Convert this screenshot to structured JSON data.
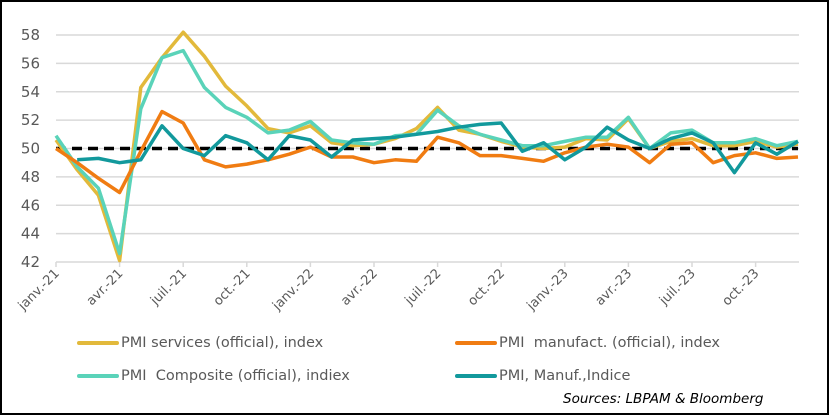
{
  "chart_data": {
    "type": "line",
    "title": "",
    "xlabel": "",
    "ylabel": "",
    "ylim": [
      42,
      58
    ],
    "yticks": [
      "42",
      "44",
      "46",
      "48",
      "50",
      "52",
      "54",
      "56",
      "58"
    ],
    "x": [
      "janv.-21",
      "févr.-21",
      "mars-21",
      "avr.-21",
      "mai-21",
      "juin-21",
      "juil.-21",
      "août-21",
      "sept.-21",
      "oct.-21",
      "nov.-21",
      "déc.-21",
      "janv.-22",
      "févr.-22",
      "mars-22",
      "avr.-22",
      "mai-22",
      "juin-22",
      "juil.-22",
      "août-22",
      "sept.-22",
      "oct.-22",
      "nov.-22",
      "déc.-22",
      "janv.-23",
      "févr.-23",
      "mars-23",
      "avr.-23",
      "mai-23",
      "juin-23",
      "juil.-23",
      "août-23",
      "sept.-23",
      "oct.-23",
      "nov.-23",
      "déc.-23"
    ],
    "xtick_labels": [
      "janv.-21",
      "avr.-21",
      "juil.-21",
      "oct.-21",
      "janv.-22",
      "avr.-22",
      "juil.-22",
      "oct.-22",
      "janv.-23",
      "avr.-23",
      "juil.-23",
      "oct.-23"
    ],
    "grid": true,
    "reference_line": 50,
    "legend_position": "bottom",
    "series": [
      {
        "name": "PMI services (official), index",
        "color": "#E2B93B",
        "values": [
          50.6,
          48.5,
          46.7,
          42.1,
          54.3,
          56.4,
          58.2,
          56.5,
          54.4,
          53.0,
          51.4,
          51.1,
          51.6,
          50.4,
          50.2,
          50.3,
          50.7,
          51.4,
          52.9,
          51.3,
          51.0,
          50.5,
          50.1,
          50.0,
          50.1,
          50.7,
          50.6,
          52.1,
          50.0,
          50.5,
          50.7,
          50.2,
          50.2,
          50.5,
          50.1,
          50.3
        ]
      },
      {
        "name": "PMI  manufact. (official), index",
        "color": "#F07C12",
        "values": [
          50.0,
          49.0,
          47.9,
          46.9,
          49.8,
          52.6,
          51.8,
          49.2,
          48.7,
          48.9,
          49.2,
          49.6,
          50.1,
          49.4,
          49.4,
          49.0,
          49.2,
          49.1,
          50.8,
          50.4,
          49.5,
          49.5,
          49.3,
          49.1,
          49.7,
          50.1,
          50.3,
          50.1,
          49.0,
          50.3,
          50.4,
          49.0,
          49.5,
          49.7,
          49.3,
          49.4
        ]
      },
      {
        "name": "PMI  Composite (official), indiex",
        "color": "#5AD3B9",
        "values": [
          50.9,
          48.7,
          47.2,
          42.6,
          52.8,
          56.4,
          56.9,
          54.3,
          52.9,
          52.2,
          51.1,
          51.3,
          51.9,
          50.6,
          50.4,
          50.3,
          50.9,
          51.0,
          52.7,
          51.6,
          51.0,
          50.6,
          50.2,
          50.2,
          50.5,
          50.8,
          50.8,
          52.2,
          50.0,
          51.1,
          51.3,
          50.4,
          50.4,
          50.7,
          50.2,
          50.5
        ]
      },
      {
        "name": "PMI, Manuf.,Indice",
        "color": "#12999C",
        "values": [
          null,
          49.2,
          49.3,
          49.0,
          49.2,
          51.6,
          50.0,
          49.5,
          50.9,
          50.4,
          49.2,
          50.9,
          50.6,
          49.4,
          50.6,
          50.7,
          50.8,
          51.0,
          51.2,
          51.5,
          51.7,
          51.8,
          49.8,
          50.4,
          49.2,
          50.1,
          51.5,
          50.6,
          50.0,
          50.7,
          51.1,
          50.4,
          48.3,
          50.4,
          49.6,
          50.5
        ]
      }
    ]
  },
  "source": "Sources: LBPAM & Bloomberg"
}
